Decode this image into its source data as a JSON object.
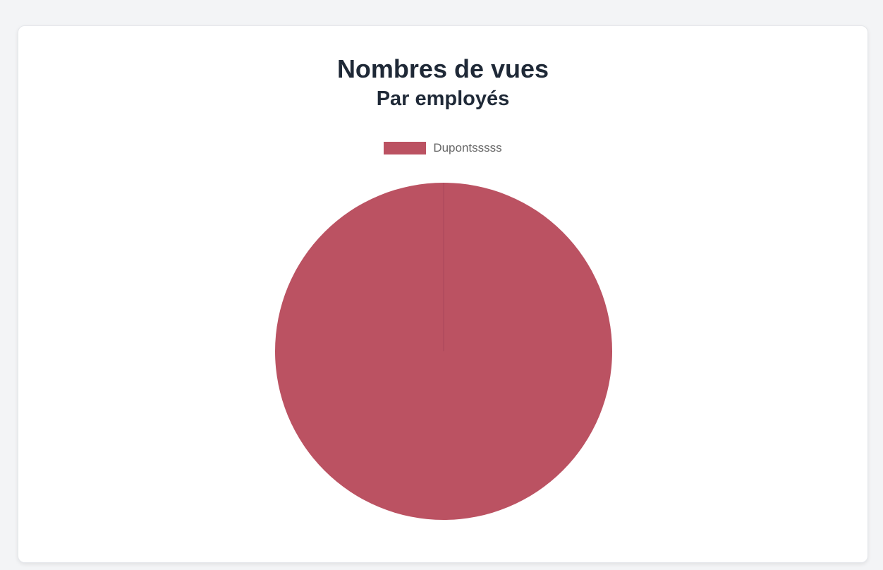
{
  "chart_data": {
    "type": "pie",
    "title": "Nombres de vues",
    "subtitle": "Par employés",
    "legend_position": "top",
    "categories": [
      "Dupontsssss"
    ],
    "values": [
      100
    ],
    "colors": [
      "#bb5262"
    ]
  }
}
